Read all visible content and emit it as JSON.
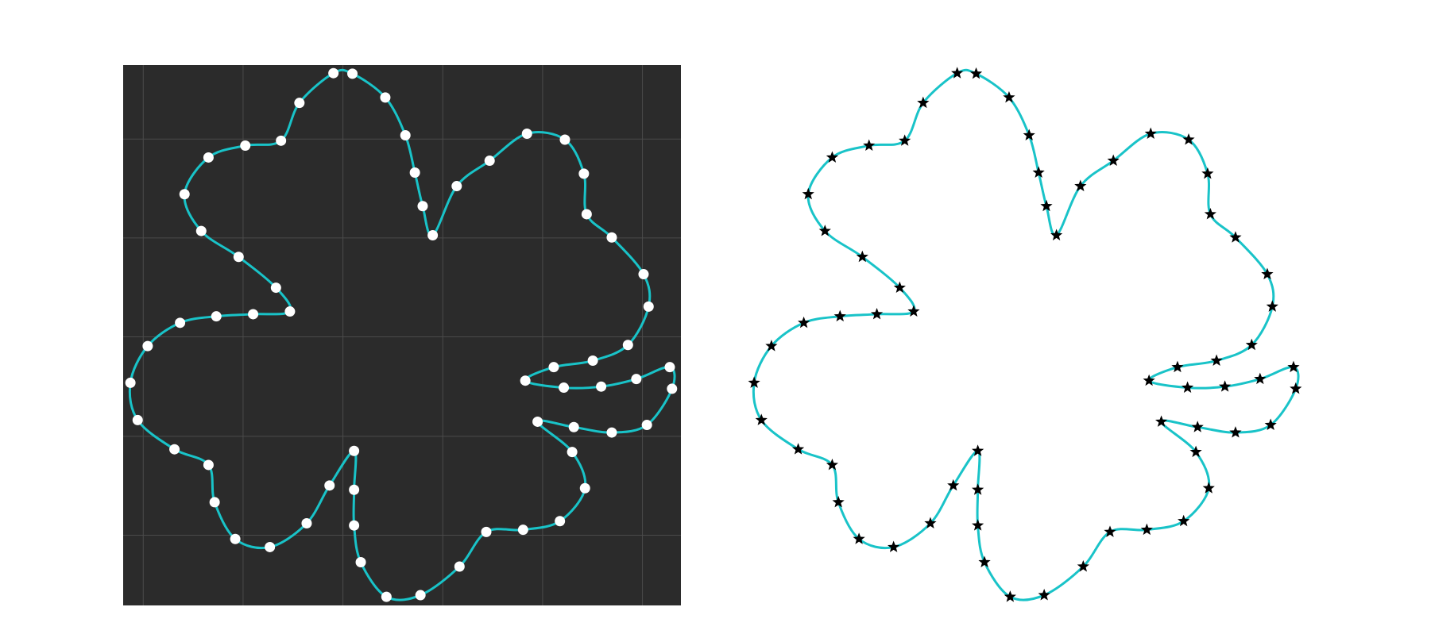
{
  "colors": {
    "curve": "#19c3c8",
    "panel_background": "#2b2b2b",
    "grid": "#4b4b4b",
    "dot_marker": "#ffffff",
    "star_marker": "#000000",
    "page_background": "#ffffff"
  },
  "chart_data": [
    {
      "type": "line",
      "title": "",
      "xlabel": "",
      "ylabel": "",
      "xlim": [
        0,
        100
      ],
      "ylim": [
        0,
        100
      ],
      "grid": true,
      "grid_x": [
        3.6,
        21.5,
        39.4,
        57.3,
        75.2,
        93.1
      ],
      "grid_y": [
        86.3,
        68.0,
        49.7,
        31.3,
        13.0
      ],
      "background": "dark",
      "marker": "circle",
      "points": [
        [
          37.7,
          98.5
        ],
        [
          41.1,
          98.4
        ],
        [
          47.0,
          94.0
        ],
        [
          50.6,
          87.0
        ],
        [
          52.3,
          80.1
        ],
        [
          53.7,
          73.9
        ],
        [
          55.5,
          68.5
        ],
        [
          59.8,
          77.6
        ],
        [
          65.7,
          82.3
        ],
        [
          72.4,
          87.3
        ],
        [
          79.2,
          86.2
        ],
        [
          82.6,
          79.9
        ],
        [
          83.1,
          72.4
        ],
        [
          87.6,
          68.1
        ],
        [
          93.3,
          61.3
        ],
        [
          94.2,
          55.3
        ],
        [
          90.5,
          48.2
        ],
        [
          84.2,
          45.3
        ],
        [
          77.2,
          44.1
        ],
        [
          72.1,
          41.6
        ],
        [
          79.0,
          40.3
        ],
        [
          85.7,
          40.5
        ],
        [
          92.0,
          41.9
        ],
        [
          98.0,
          44.1
        ],
        [
          98.4,
          40.1
        ],
        [
          93.9,
          33.4
        ],
        [
          87.6,
          32.0
        ],
        [
          80.8,
          33.0
        ],
        [
          74.3,
          34.0
        ],
        [
          80.5,
          28.4
        ],
        [
          82.8,
          21.7
        ],
        [
          78.3,
          15.6
        ],
        [
          71.7,
          14.0
        ],
        [
          65.1,
          13.6
        ],
        [
          60.3,
          7.2
        ],
        [
          53.3,
          1.9
        ],
        [
          47.2,
          1.6
        ],
        [
          42.6,
          8.0
        ],
        [
          41.4,
          14.8
        ],
        [
          41.4,
          21.4
        ],
        [
          41.4,
          28.6
        ],
        [
          37.0,
          22.2
        ],
        [
          32.9,
          15.2
        ],
        [
          26.3,
          10.8
        ],
        [
          20.1,
          12.3
        ],
        [
          16.4,
          19.1
        ],
        [
          15.3,
          26.0
        ],
        [
          9.2,
          28.9
        ],
        [
          2.6,
          34.3
        ],
        [
          1.3,
          41.2
        ],
        [
          4.4,
          48.0
        ],
        [
          10.2,
          52.3
        ],
        [
          16.7,
          53.5
        ],
        [
          23.3,
          53.9
        ],
        [
          29.9,
          54.4
        ],
        [
          27.4,
          58.8
        ],
        [
          20.7,
          64.5
        ],
        [
          14.0,
          69.3
        ],
        [
          11.0,
          76.1
        ],
        [
          15.3,
          82.9
        ],
        [
          21.9,
          85.1
        ],
        [
          28.3,
          86.0
        ],
        [
          31.6,
          93.0
        ]
      ]
    },
    {
      "type": "line",
      "title": "",
      "xlabel": "",
      "ylabel": "",
      "xlim": [
        0,
        100
      ],
      "ylim": [
        0,
        100
      ],
      "grid": false,
      "background": "white",
      "marker": "star",
      "points": [
        [
          37.7,
          98.5
        ],
        [
          41.1,
          98.4
        ],
        [
          47.0,
          94.0
        ],
        [
          50.6,
          87.0
        ],
        [
          52.3,
          80.1
        ],
        [
          53.7,
          73.9
        ],
        [
          55.5,
          68.5
        ],
        [
          59.8,
          77.6
        ],
        [
          65.7,
          82.3
        ],
        [
          72.4,
          87.3
        ],
        [
          79.2,
          86.2
        ],
        [
          82.6,
          79.9
        ],
        [
          83.1,
          72.4
        ],
        [
          87.6,
          68.1
        ],
        [
          93.3,
          61.3
        ],
        [
          94.2,
          55.3
        ],
        [
          90.5,
          48.2
        ],
        [
          84.2,
          45.3
        ],
        [
          77.2,
          44.1
        ],
        [
          72.1,
          41.6
        ],
        [
          79.0,
          40.3
        ],
        [
          85.7,
          40.5
        ],
        [
          92.0,
          41.9
        ],
        [
          98.0,
          44.1
        ],
        [
          98.4,
          40.1
        ],
        [
          93.9,
          33.4
        ],
        [
          87.6,
          32.0
        ],
        [
          80.8,
          33.0
        ],
        [
          74.3,
          34.0
        ],
        [
          80.5,
          28.4
        ],
        [
          82.8,
          21.7
        ],
        [
          78.3,
          15.6
        ],
        [
          71.7,
          14.0
        ],
        [
          65.1,
          13.6
        ],
        [
          60.3,
          7.2
        ],
        [
          53.3,
          1.9
        ],
        [
          47.2,
          1.6
        ],
        [
          42.6,
          8.0
        ],
        [
          41.4,
          14.8
        ],
        [
          41.4,
          21.4
        ],
        [
          41.4,
          28.6
        ],
        [
          37.0,
          22.2
        ],
        [
          32.9,
          15.2
        ],
        [
          26.3,
          10.8
        ],
        [
          20.1,
          12.3
        ],
        [
          16.4,
          19.1
        ],
        [
          15.3,
          26.0
        ],
        [
          9.2,
          28.9
        ],
        [
          2.6,
          34.3
        ],
        [
          1.3,
          41.2
        ],
        [
          4.4,
          48.0
        ],
        [
          10.2,
          52.3
        ],
        [
          16.7,
          53.5
        ],
        [
          23.3,
          53.9
        ],
        [
          29.9,
          54.4
        ],
        [
          27.4,
          58.8
        ],
        [
          20.7,
          64.5
        ],
        [
          14.0,
          69.3
        ],
        [
          11.0,
          76.1
        ],
        [
          15.3,
          82.9
        ],
        [
          21.9,
          85.1
        ],
        [
          28.3,
          86.0
        ],
        [
          31.6,
          93.0
        ]
      ]
    }
  ]
}
